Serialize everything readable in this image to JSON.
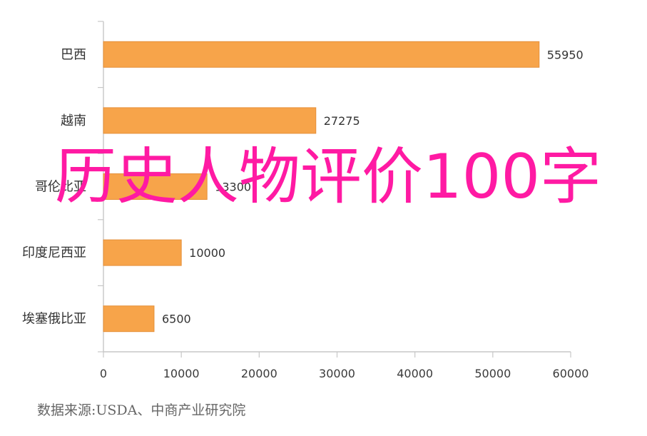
{
  "chart_data": {
    "type": "bar",
    "orientation": "horizontal",
    "categories": [
      "巴西",
      "越南",
      "哥伦比亚",
      "印度尼西亚",
      "埃塞俄比亚"
    ],
    "values": [
      55950,
      27275,
      13300,
      10000,
      6500
    ],
    "data_labels": [
      "55950",
      "27275",
      "13300",
      "10000",
      "6500"
    ],
    "xlim": [
      0,
      60000
    ],
    "x_ticks": [
      0,
      10000,
      20000,
      30000,
      40000,
      50000,
      60000
    ],
    "x_tick_labels": [
      "0",
      "10000",
      "20000",
      "30000",
      "40000",
      "50000",
      "60000"
    ],
    "grid": false,
    "bar_color": "#f7a44a",
    "bar_edge_color": "#e5903a",
    "axis_color": "#c7c7c7"
  },
  "overlay": {
    "title": "历史人物评价100字",
    "color": "#ff1aa3"
  },
  "source": {
    "text": "数据来源:USDA、中商产业研究院"
  }
}
